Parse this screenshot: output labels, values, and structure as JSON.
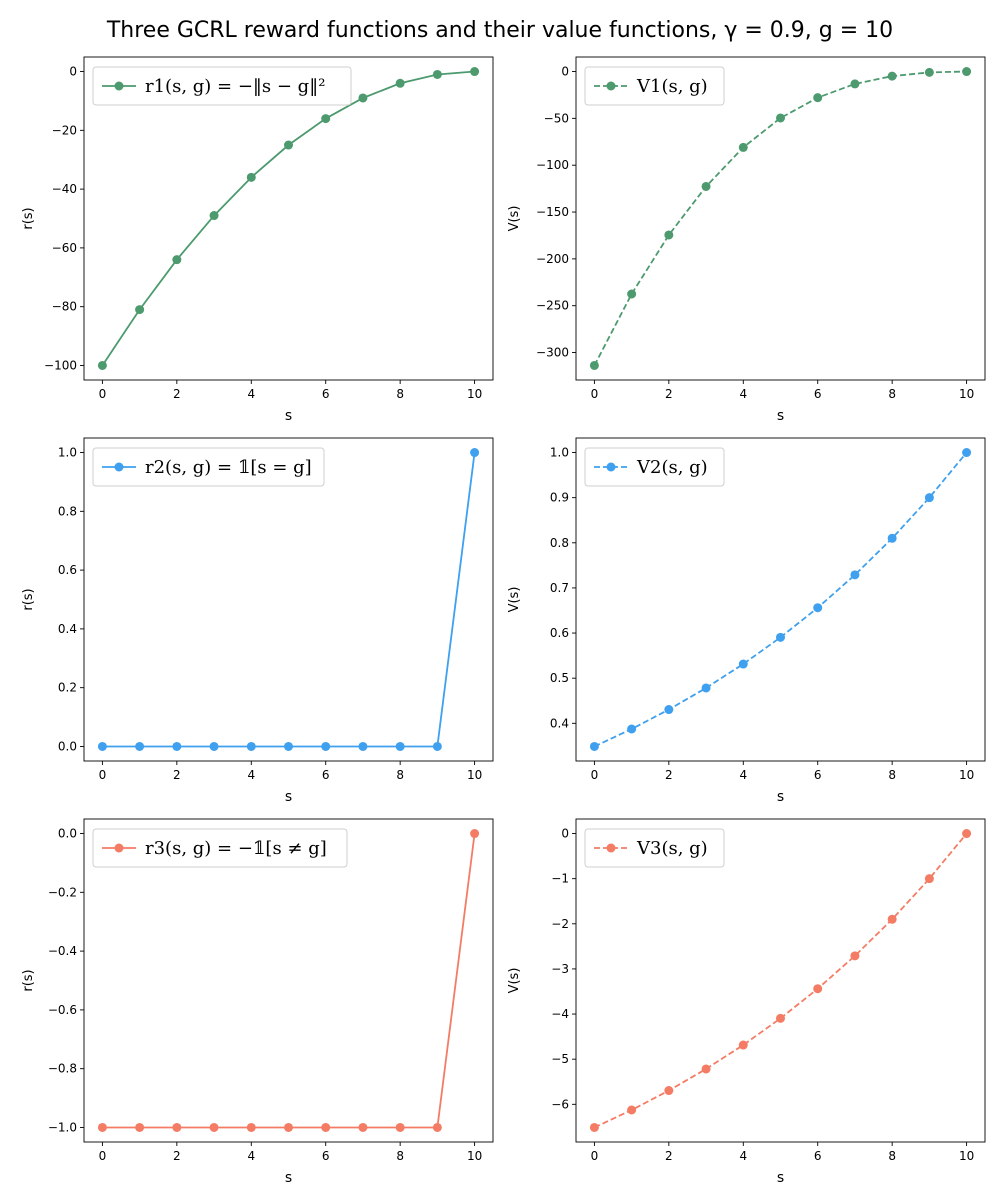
{
  "title": "Three GCRL reward functions and their value functions, γ = 0.9, g = 10",
  "colors": {
    "green": "#4c9a6e",
    "blue": "#3ea0ee",
    "red": "#f47c65"
  },
  "chart_data": [
    {
      "type": "line",
      "position": "row1-left",
      "xlabel": "s",
      "ylabel": "r(s)",
      "xlim": [
        0,
        10
      ],
      "ylim": [
        -100,
        0
      ],
      "xticks": [
        0,
        2,
        4,
        6,
        8,
        10
      ],
      "yticks": [
        -100,
        -80,
        -60,
        -40,
        -20,
        0
      ],
      "ytick_labels": [
        "−100",
        "−80",
        "−60",
        "−40",
        "−20",
        "0"
      ],
      "legend_placement": "upper-left",
      "series": [
        {
          "name": "r1(s, g) = −‖s − g‖²",
          "color": "#4c9a6e",
          "linestyle": "solid",
          "x": [
            0,
            1,
            2,
            3,
            4,
            5,
            6,
            7,
            8,
            9,
            10
          ],
          "y": [
            -100,
            -81,
            -64,
            -49,
            -36,
            -25,
            -16,
            -9,
            -4,
            -1,
            0
          ]
        }
      ]
    },
    {
      "type": "line",
      "position": "row1-right",
      "xlabel": "s",
      "ylabel": "V(s)",
      "xlim": [
        0,
        10
      ],
      "ylim": [
        -313.8,
        0
      ],
      "xticks": [
        0,
        2,
        4,
        6,
        8,
        10
      ],
      "yticks": [
        -300,
        -250,
        -200,
        -150,
        -100,
        -50,
        0
      ],
      "ytick_labels": [
        "−300",
        "−250",
        "−200",
        "−150",
        "−100",
        "−50",
        "0"
      ],
      "legend_placement": "upper-left",
      "series": [
        {
          "name": "V1(s, g)",
          "color": "#4c9a6e",
          "linestyle": "dashed",
          "x": [
            0,
            1,
            2,
            3,
            4,
            5,
            6,
            7,
            8,
            9,
            10
          ],
          "y": [
            -313.8,
            -237.5,
            -174.5,
            -122.7,
            -81.0,
            -49.6,
            -27.9,
            -13.2,
            -4.9,
            -0.9,
            0
          ]
        }
      ]
    },
    {
      "type": "line",
      "position": "row2-left",
      "xlabel": "s",
      "ylabel": "r(s)",
      "xlim": [
        0,
        10
      ],
      "ylim": [
        0,
        1
      ],
      "xticks": [
        0,
        2,
        4,
        6,
        8,
        10
      ],
      "yticks": [
        0.0,
        0.2,
        0.4,
        0.6,
        0.8,
        1.0
      ],
      "ytick_labels": [
        "0.0",
        "0.2",
        "0.4",
        "0.6",
        "0.8",
        "1.0"
      ],
      "legend_placement": "upper-left",
      "series": [
        {
          "name": "r2(s, g) = 𝟙[s = g]",
          "color": "#3ea0ee",
          "linestyle": "solid",
          "x": [
            0,
            1,
            2,
            3,
            4,
            5,
            6,
            7,
            8,
            9,
            10
          ],
          "y": [
            0,
            0,
            0,
            0,
            0,
            0,
            0,
            0,
            0,
            0,
            1
          ]
        }
      ]
    },
    {
      "type": "line",
      "position": "row2-right",
      "xlabel": "s",
      "ylabel": "V(s)",
      "xlim": [
        0,
        10
      ],
      "ylim": [
        0.3487,
        1
      ],
      "xticks": [
        0,
        2,
        4,
        6,
        8,
        10
      ],
      "yticks": [
        0.4,
        0.5,
        0.6,
        0.7,
        0.8,
        0.9,
        1.0
      ],
      "ytick_labels": [
        "0.4",
        "0.5",
        "0.6",
        "0.7",
        "0.8",
        "0.9",
        "1.0"
      ],
      "legend_placement": "upper-left",
      "series": [
        {
          "name": "V2(s, g)",
          "color": "#3ea0ee",
          "linestyle": "dashed",
          "x": [
            0,
            1,
            2,
            3,
            4,
            5,
            6,
            7,
            8,
            9,
            10
          ],
          "y": [
            0.3487,
            0.3874,
            0.4305,
            0.4783,
            0.5314,
            0.5905,
            0.6561,
            0.729,
            0.81,
            0.9,
            1.0
          ]
        }
      ]
    },
    {
      "type": "line",
      "position": "row3-left",
      "xlabel": "s",
      "ylabel": "r(s)",
      "xlim": [
        0,
        10
      ],
      "ylim": [
        -1,
        0
      ],
      "xticks": [
        0,
        2,
        4,
        6,
        8,
        10
      ],
      "yticks": [
        -1.0,
        -0.8,
        -0.6,
        -0.4,
        -0.2,
        0.0
      ],
      "ytick_labels": [
        "−1.0",
        "−0.8",
        "−0.6",
        "−0.4",
        "−0.2",
        "0.0"
      ],
      "legend_placement": "upper-left",
      "series": [
        {
          "name": "r3(s, g) = −𝟙[s ≠ g]",
          "color": "#f47c65",
          "linestyle": "solid",
          "x": [
            0,
            1,
            2,
            3,
            4,
            5,
            6,
            7,
            8,
            9,
            10
          ],
          "y": [
            -1,
            -1,
            -1,
            -1,
            -1,
            -1,
            -1,
            -1,
            -1,
            -1,
            0
          ]
        }
      ]
    },
    {
      "type": "line",
      "position": "row3-right",
      "xlabel": "s",
      "ylabel": "V(s)",
      "xlim": [
        0,
        10
      ],
      "ylim": [
        -6.513,
        0
      ],
      "xticks": [
        0,
        2,
        4,
        6,
        8,
        10
      ],
      "yticks": [
        -6,
        -5,
        -4,
        -3,
        -2,
        -1,
        0
      ],
      "ytick_labels": [
        "−6",
        "−5",
        "−4",
        "−3",
        "−2",
        "−1",
        "0"
      ],
      "legend_placement": "upper-left",
      "series": [
        {
          "name": "V3(s, g)",
          "color": "#f47c65",
          "linestyle": "dashed",
          "x": [
            0,
            1,
            2,
            3,
            4,
            5,
            6,
            7,
            8,
            9,
            10
          ],
          "y": [
            -6.513,
            -6.126,
            -5.695,
            -5.217,
            -4.686,
            -4.095,
            -3.439,
            -2.71,
            -1.9,
            -1.0,
            0
          ]
        }
      ]
    }
  ]
}
